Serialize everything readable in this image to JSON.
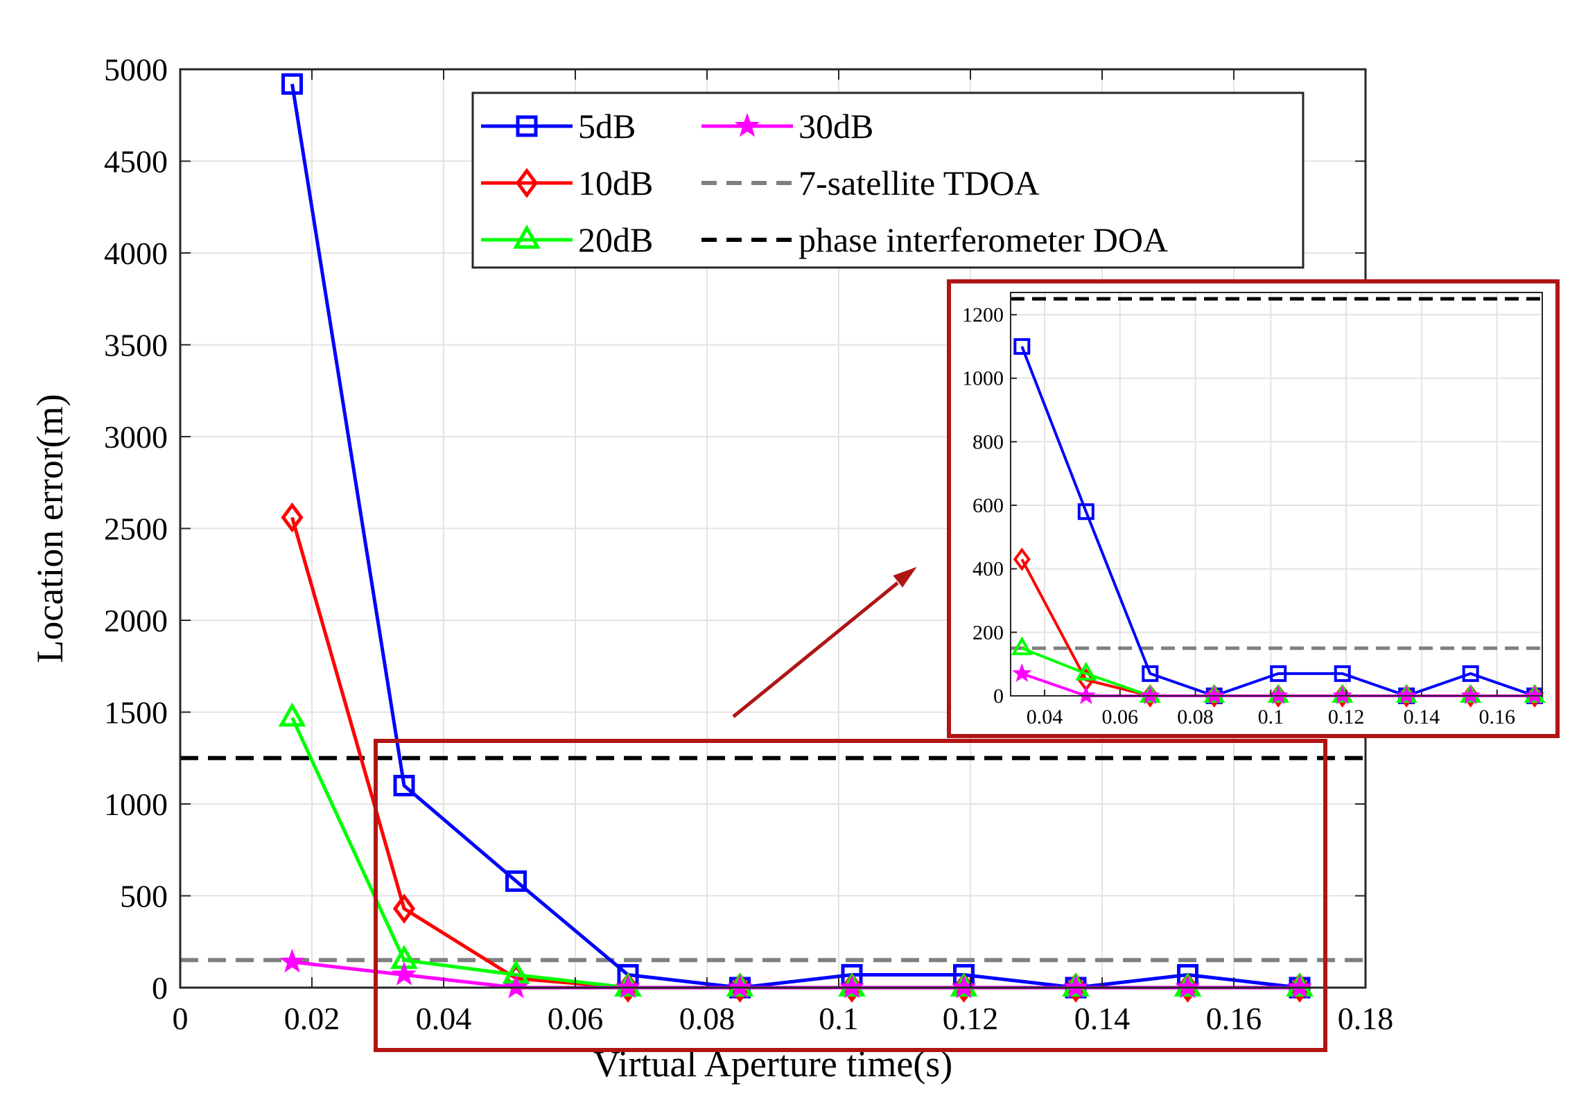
{
  "chart_data": {
    "type": "line",
    "title": "",
    "xlabel": "Virtual Aperture time(s)",
    "ylabel": "Location error(m)",
    "xlim": [
      0,
      0.18
    ],
    "ylim": [
      0,
      5000
    ],
    "xticks": [
      0,
      0.02,
      0.04,
      0.06,
      0.08,
      0.1,
      0.12,
      0.14,
      0.16,
      0.18
    ],
    "xtick_labels": [
      "0",
      "0.02",
      "0.04",
      "0.06",
      "0.08",
      "0.1",
      "0.12",
      "0.14",
      "0.16",
      "0.18"
    ],
    "yticks": [
      0,
      500,
      1000,
      1500,
      2000,
      2500,
      3000,
      3500,
      4000,
      4500,
      5000
    ],
    "ytick_labels": [
      "0",
      "500",
      "1000",
      "1500",
      "2000",
      "2500",
      "3000",
      "3500",
      "4000",
      "4500",
      "5000"
    ],
    "grid": true,
    "legend_position": "top-center",
    "x": [
      0.017,
      0.034,
      0.051,
      0.068,
      0.085,
      0.102,
      0.119,
      0.136,
      0.153,
      0.17
    ],
    "series": [
      {
        "name": "5dB",
        "color": "#0000ff",
        "marker": "square",
        "values": [
          4920,
          1100,
          580,
          70,
          0,
          70,
          70,
          0,
          70,
          0
        ]
      },
      {
        "name": "10dB",
        "color": "#ff0000",
        "marker": "diamond",
        "values": [
          2560,
          430,
          50,
          0,
          0,
          0,
          0,
          0,
          0,
          0
        ]
      },
      {
        "name": "20dB",
        "color": "#00ff00",
        "marker": "triangle",
        "values": [
          1470,
          150,
          70,
          0,
          0,
          0,
          0,
          0,
          0,
          0
        ]
      },
      {
        "name": "30dB",
        "color": "#ff00ff",
        "marker": "star",
        "values": [
          140,
          70,
          0,
          0,
          0,
          0,
          0,
          0,
          0,
          0
        ]
      }
    ],
    "reference_lines": [
      {
        "name": "7-satellite TDOA",
        "value": 150,
        "color": "#808080",
        "style": "dashed"
      },
      {
        "name": "phase interferometer DOA",
        "value": 1250,
        "color": "#000000",
        "style": "dashed"
      }
    ],
    "inset": {
      "xlim": [
        0.031,
        0.172
      ],
      "ylim": [
        0,
        1270
      ],
      "xticks": [
        0.04,
        0.06,
        0.08,
        0.1,
        0.12,
        0.14,
        0.16
      ],
      "xtick_labels": [
        "0.04",
        "0.06",
        "0.08",
        "0.1",
        "0.12",
        "0.14",
        "0.16"
      ],
      "yticks": [
        0,
        200,
        400,
        600,
        800,
        1000,
        1200
      ],
      "ytick_labels": [
        "0",
        "200",
        "400",
        "600",
        "800",
        "1000",
        "1200"
      ],
      "x_start_index": 1
    },
    "annotation_color": "#b01515"
  }
}
